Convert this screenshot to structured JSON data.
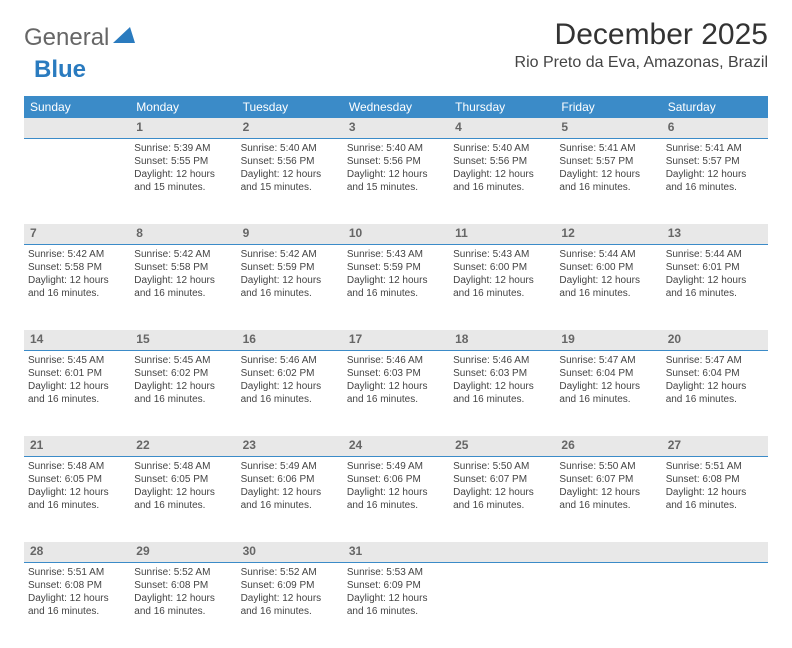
{
  "logo": {
    "word1": "General",
    "word2": "Blue"
  },
  "title": "December 2025",
  "location": "Rio Preto da Eva, Amazonas, Brazil",
  "colors": {
    "header_bg": "#3b8bc8",
    "header_text": "#ffffff",
    "daynum_bg": "#e8e8e8",
    "daynum_border": "#3b8bc8",
    "body_text": "#444444",
    "logo_gray": "#666666",
    "logo_blue": "#2a7bbf"
  },
  "weekdays": [
    "Sunday",
    "Monday",
    "Tuesday",
    "Wednesday",
    "Thursday",
    "Friday",
    "Saturday"
  ],
  "weeks": [
    {
      "nums": [
        "",
        "1",
        "2",
        "3",
        "4",
        "5",
        "6"
      ],
      "cells": [
        null,
        {
          "sunrise": "5:39 AM",
          "sunset": "5:55 PM",
          "daylight": "12 hours and 15 minutes."
        },
        {
          "sunrise": "5:40 AM",
          "sunset": "5:56 PM",
          "daylight": "12 hours and 15 minutes."
        },
        {
          "sunrise": "5:40 AM",
          "sunset": "5:56 PM",
          "daylight": "12 hours and 15 minutes."
        },
        {
          "sunrise": "5:40 AM",
          "sunset": "5:56 PM",
          "daylight": "12 hours and 16 minutes."
        },
        {
          "sunrise": "5:41 AM",
          "sunset": "5:57 PM",
          "daylight": "12 hours and 16 minutes."
        },
        {
          "sunrise": "5:41 AM",
          "sunset": "5:57 PM",
          "daylight": "12 hours and 16 minutes."
        }
      ]
    },
    {
      "nums": [
        "7",
        "8",
        "9",
        "10",
        "11",
        "12",
        "13"
      ],
      "cells": [
        {
          "sunrise": "5:42 AM",
          "sunset": "5:58 PM",
          "daylight": "12 hours and 16 minutes."
        },
        {
          "sunrise": "5:42 AM",
          "sunset": "5:58 PM",
          "daylight": "12 hours and 16 minutes."
        },
        {
          "sunrise": "5:42 AM",
          "sunset": "5:59 PM",
          "daylight": "12 hours and 16 minutes."
        },
        {
          "sunrise": "5:43 AM",
          "sunset": "5:59 PM",
          "daylight": "12 hours and 16 minutes."
        },
        {
          "sunrise": "5:43 AM",
          "sunset": "6:00 PM",
          "daylight": "12 hours and 16 minutes."
        },
        {
          "sunrise": "5:44 AM",
          "sunset": "6:00 PM",
          "daylight": "12 hours and 16 minutes."
        },
        {
          "sunrise": "5:44 AM",
          "sunset": "6:01 PM",
          "daylight": "12 hours and 16 minutes."
        }
      ]
    },
    {
      "nums": [
        "14",
        "15",
        "16",
        "17",
        "18",
        "19",
        "20"
      ],
      "cells": [
        {
          "sunrise": "5:45 AM",
          "sunset": "6:01 PM",
          "daylight": "12 hours and 16 minutes."
        },
        {
          "sunrise": "5:45 AM",
          "sunset": "6:02 PM",
          "daylight": "12 hours and 16 minutes."
        },
        {
          "sunrise": "5:46 AM",
          "sunset": "6:02 PM",
          "daylight": "12 hours and 16 minutes."
        },
        {
          "sunrise": "5:46 AM",
          "sunset": "6:03 PM",
          "daylight": "12 hours and 16 minutes."
        },
        {
          "sunrise": "5:46 AM",
          "sunset": "6:03 PM",
          "daylight": "12 hours and 16 minutes."
        },
        {
          "sunrise": "5:47 AM",
          "sunset": "6:04 PM",
          "daylight": "12 hours and 16 minutes."
        },
        {
          "sunrise": "5:47 AM",
          "sunset": "6:04 PM",
          "daylight": "12 hours and 16 minutes."
        }
      ]
    },
    {
      "nums": [
        "21",
        "22",
        "23",
        "24",
        "25",
        "26",
        "27"
      ],
      "cells": [
        {
          "sunrise": "5:48 AM",
          "sunset": "6:05 PM",
          "daylight": "12 hours and 16 minutes."
        },
        {
          "sunrise": "5:48 AM",
          "sunset": "6:05 PM",
          "daylight": "12 hours and 16 minutes."
        },
        {
          "sunrise": "5:49 AM",
          "sunset": "6:06 PM",
          "daylight": "12 hours and 16 minutes."
        },
        {
          "sunrise": "5:49 AM",
          "sunset": "6:06 PM",
          "daylight": "12 hours and 16 minutes."
        },
        {
          "sunrise": "5:50 AM",
          "sunset": "6:07 PM",
          "daylight": "12 hours and 16 minutes."
        },
        {
          "sunrise": "5:50 AM",
          "sunset": "6:07 PM",
          "daylight": "12 hours and 16 minutes."
        },
        {
          "sunrise": "5:51 AM",
          "sunset": "6:08 PM",
          "daylight": "12 hours and 16 minutes."
        }
      ]
    },
    {
      "nums": [
        "28",
        "29",
        "30",
        "31",
        "",
        "",
        ""
      ],
      "cells": [
        {
          "sunrise": "5:51 AM",
          "sunset": "6:08 PM",
          "daylight": "12 hours and 16 minutes."
        },
        {
          "sunrise": "5:52 AM",
          "sunset": "6:08 PM",
          "daylight": "12 hours and 16 minutes."
        },
        {
          "sunrise": "5:52 AM",
          "sunset": "6:09 PM",
          "daylight": "12 hours and 16 minutes."
        },
        {
          "sunrise": "5:53 AM",
          "sunset": "6:09 PM",
          "daylight": "12 hours and 16 minutes."
        },
        null,
        null,
        null
      ]
    }
  ],
  "labels": {
    "sunrise": "Sunrise:",
    "sunset": "Sunset:",
    "daylight": "Daylight:"
  }
}
